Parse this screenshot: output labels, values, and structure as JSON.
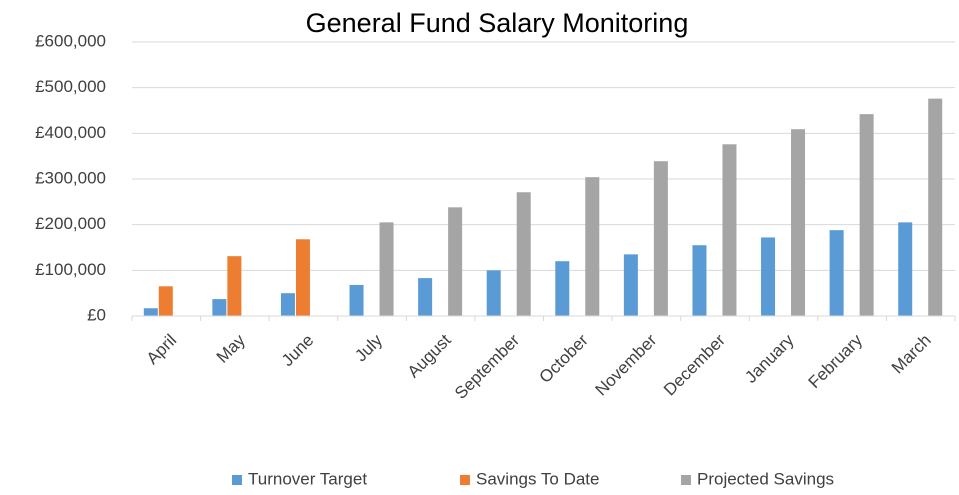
{
  "chart_data": {
    "type": "bar",
    "title": "General Fund Salary Monitoring",
    "categories": [
      "April",
      "May",
      "June",
      "July",
      "August",
      "September",
      "October",
      "November",
      "December",
      "January",
      "February",
      "March"
    ],
    "series": [
      {
        "name": "Turnover Target",
        "color": "#5b9bd5",
        "values": [
          17000,
          37000,
          50000,
          68000,
          83000,
          100000,
          120000,
          135000,
          155000,
          172000,
          188000,
          205000
        ]
      },
      {
        "name": "Savings To Date",
        "color": "#ed7d31",
        "values": [
          65000,
          131000,
          168000,
          null,
          null,
          null,
          null,
          null,
          null,
          null,
          null,
          null
        ]
      },
      {
        "name": "Projected Savings",
        "color": "#a5a5a5",
        "values": [
          null,
          null,
          null,
          205000,
          238000,
          271000,
          304000,
          339000,
          376000,
          409000,
          442000,
          476000
        ]
      }
    ],
    "ylim": [
      0,
      600000
    ],
    "yticks": [
      {
        "value": 0,
        "label": "£0"
      },
      {
        "value": 100000,
        "label": "£100,000"
      },
      {
        "value": 200000,
        "label": "£200,000"
      },
      {
        "value": 300000,
        "label": "£300,000"
      },
      {
        "value": 400000,
        "label": "£400,000"
      },
      {
        "value": 500000,
        "label": "£500,000"
      },
      {
        "value": 600000,
        "label": "£600,000"
      }
    ],
    "grid": true,
    "legend": "bottom"
  }
}
